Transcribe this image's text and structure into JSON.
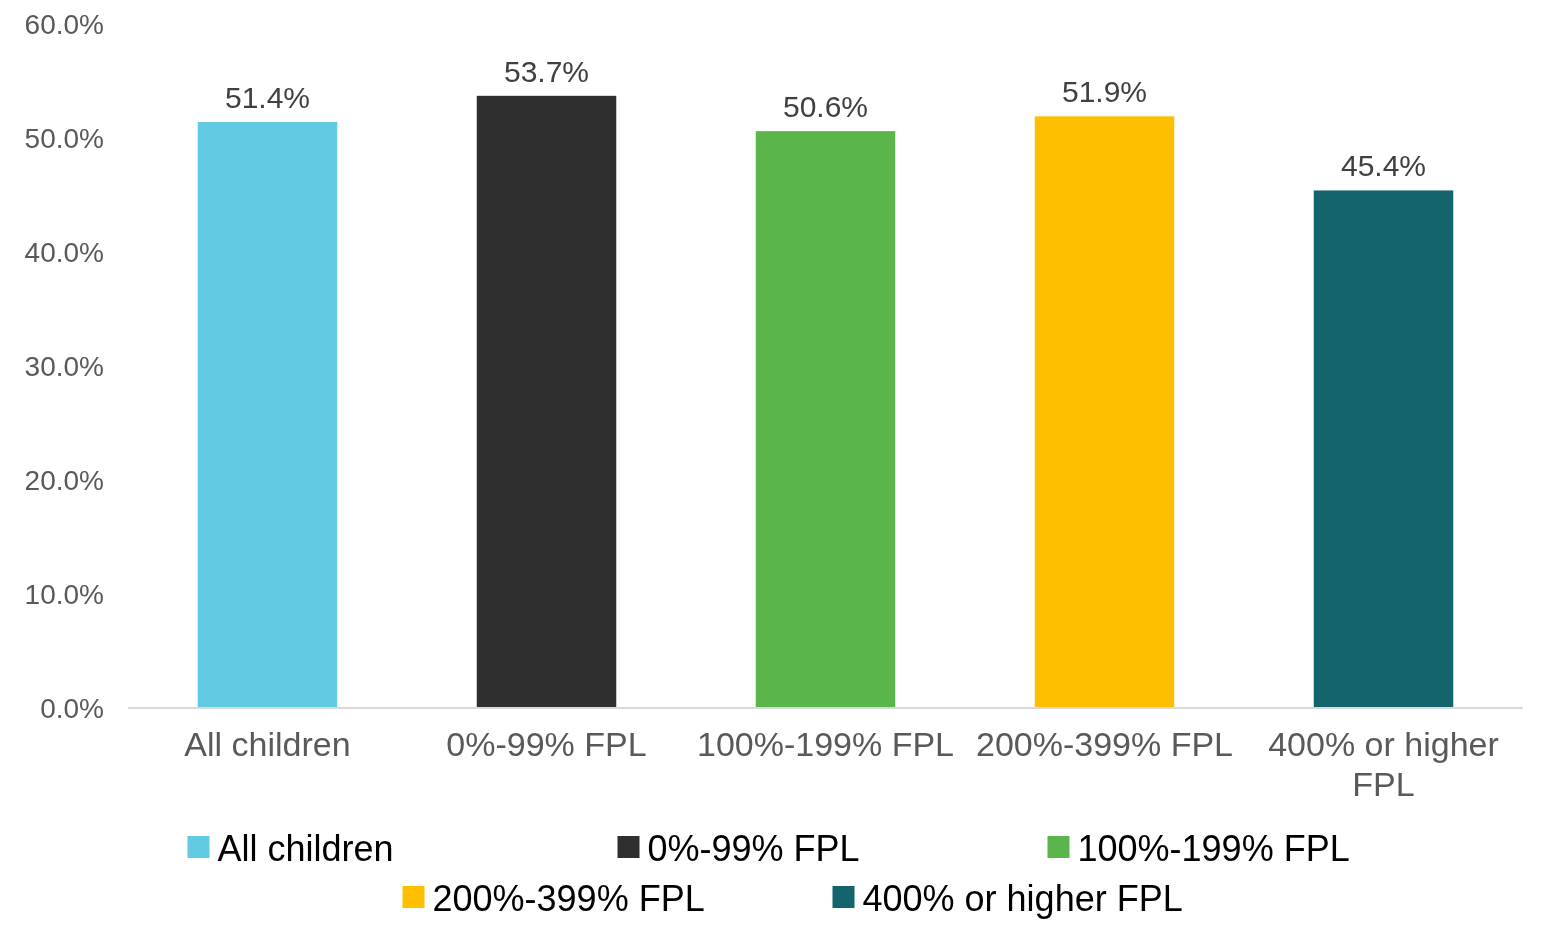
{
  "chart_data": {
    "type": "bar",
    "categories": [
      "All children",
      "0%-99% FPL",
      "100%-199% FPL",
      "200%-399% FPL",
      "400% or higher FPL"
    ],
    "series": [
      {
        "name": "All children",
        "color": "#63cae3",
        "values": [
          51.4,
          null,
          null,
          null,
          null
        ],
        "value_labels": [
          "51.4%",
          null,
          null,
          null,
          null
        ]
      },
      {
        "name": "0%-99% FPL",
        "color": "#2f2f2f",
        "values": [
          null,
          53.7,
          null,
          null,
          null
        ],
        "value_labels": [
          null,
          "53.7%",
          null,
          null,
          null
        ]
      },
      {
        "name": "100%-199% FPL",
        "color": "#5ab54a",
        "values": [
          null,
          null,
          50.6,
          null,
          null
        ],
        "value_labels": [
          null,
          null,
          "50.6%",
          null,
          null
        ]
      },
      {
        "name": "200%-399% FPL",
        "color": "#fdbf00",
        "values": [
          null,
          null,
          null,
          51.9,
          null
        ],
        "value_labels": [
          null,
          null,
          null,
          "51.9%",
          null
        ]
      },
      {
        "name": "400% or higher FPL",
        "color": "#13646c",
        "values": [
          null,
          null,
          null,
          null,
          45.4
        ],
        "value_labels": [
          null,
          null,
          null,
          null,
          "45.4%"
        ]
      }
    ],
    "ylim": [
      0,
      60
    ],
    "yticks": [
      {
        "value": 0,
        "label": "0.0%"
      },
      {
        "value": 10,
        "label": "10.0%"
      },
      {
        "value": 20,
        "label": "20.0%"
      },
      {
        "value": 30,
        "label": "30.0%"
      },
      {
        "value": 40,
        "label": "40.0%"
      },
      {
        "value": 50,
        "label": "50.0%"
      },
      {
        "value": 60,
        "label": "60.0%"
      }
    ],
    "legend": "bottom"
  }
}
